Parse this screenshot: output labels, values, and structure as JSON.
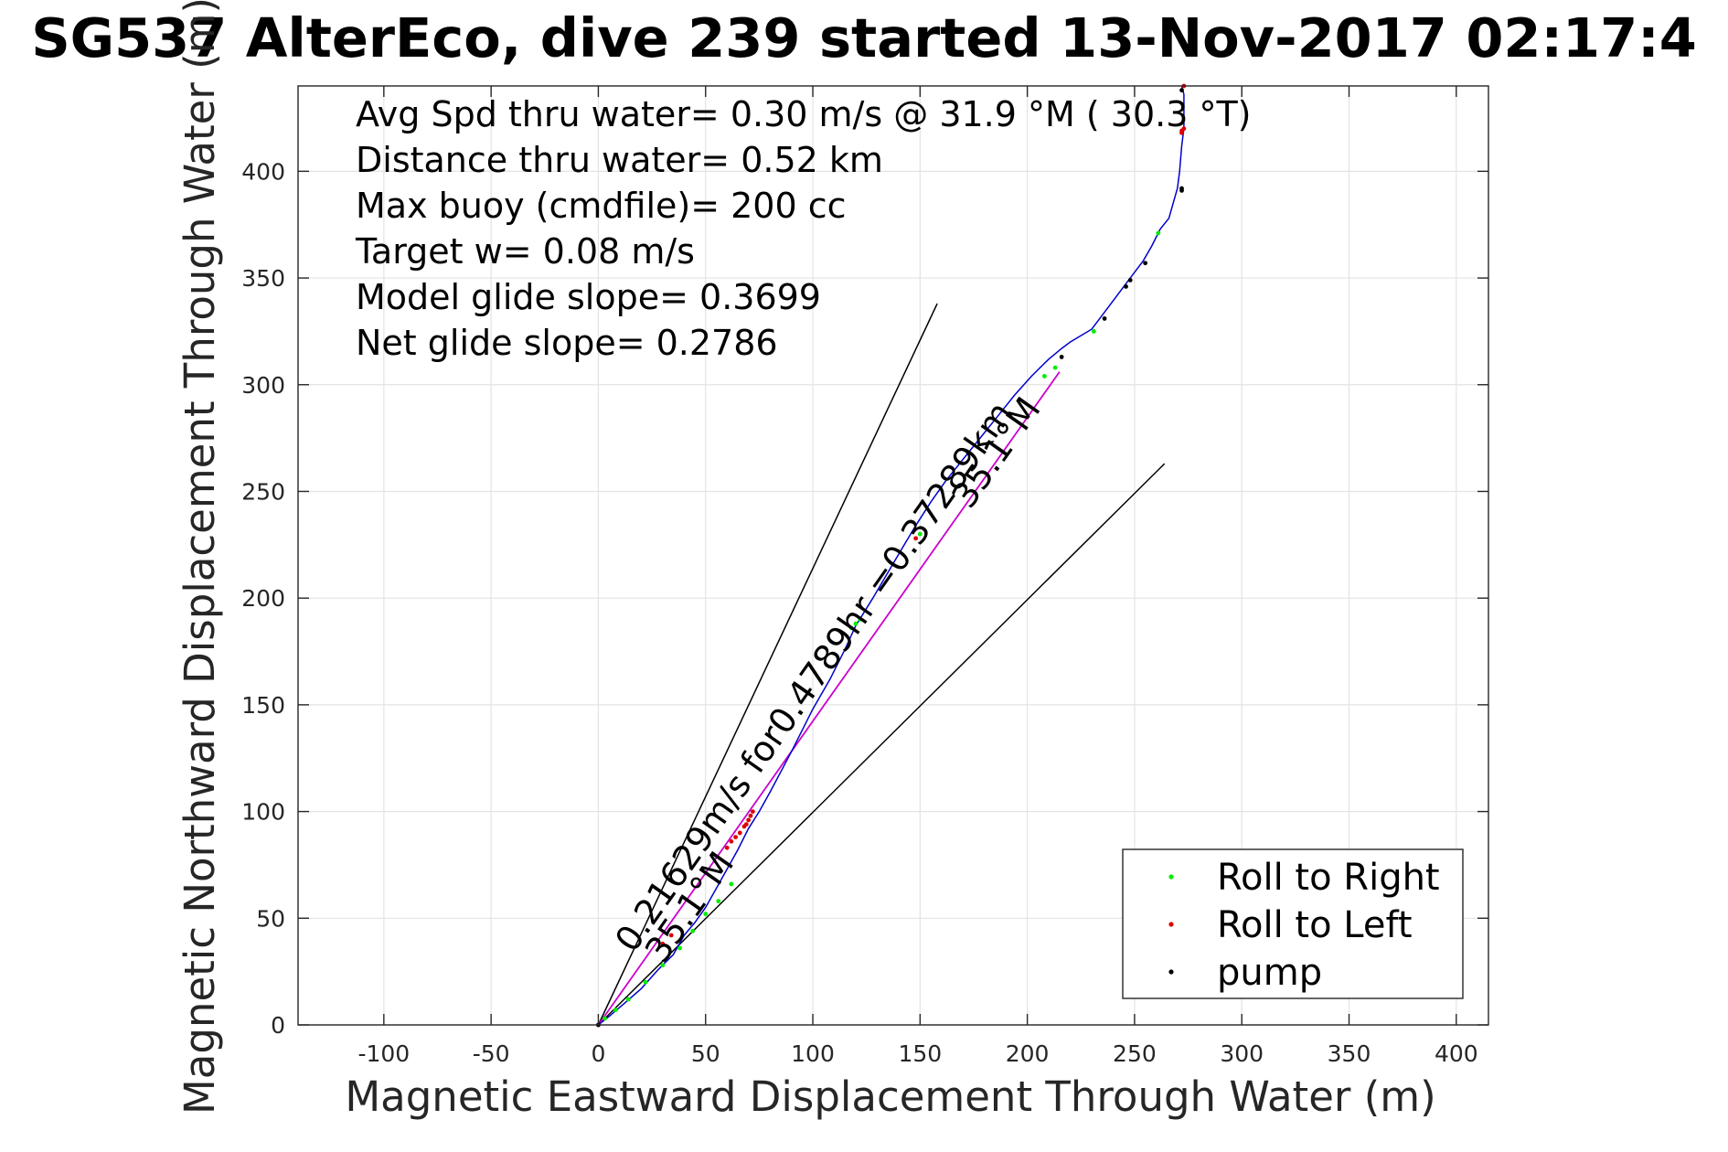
{
  "chart_data": {
    "type": "scatter",
    "title": "SG537 AlterEco, dive 239 started 13-Nov-2017 02:17:4",
    "xlabel": "Magnetic Eastward Displacement Through Water (m)",
    "ylabel": "Magnetic Northward Displacement Through Water (m)",
    "xlim": [
      -140,
      415
    ],
    "ylim": [
      0,
      440
    ],
    "xticks": [
      -100,
      -50,
      0,
      50,
      100,
      150,
      200,
      250,
      300,
      350,
      400
    ],
    "yticks": [
      0,
      50,
      100,
      150,
      200,
      250,
      300,
      350,
      400
    ],
    "grid": true,
    "info_lines": [
      "Avg Spd thru water=  0.30 m/s @  31.9 °M ( 30.3 °T)",
      "Distance thru water=  0.52 km",
      "Max buoy (cmdfile)= 200 cc",
      "Target w= 0.08 m/s",
      "Model glide slope= 0.3699",
      "Net glide slope= 0.2786"
    ],
    "rotated_annotations": [
      {
        "text": "0.21629m/s for0.4789hr =0.37289km",
        "x": 105,
        "y": 160,
        "angle_deg": -54.9
      },
      {
        "text": "35.1°M",
        "x": 190,
        "y": 265,
        "angle_deg": -54.9
      },
      {
        "text": "35.1°M",
        "x": 47,
        "y": 52,
        "angle_deg": -54.9
      }
    ],
    "reference_lines": [
      {
        "name": "envelope-left",
        "color": "#000000",
        "x": [
          0,
          158
        ],
        "y": [
          0,
          338
        ]
      },
      {
        "name": "envelope-right",
        "color": "#000000",
        "x": [
          0,
          264
        ],
        "y": [
          0,
          263
        ]
      }
    ],
    "track": {
      "color": "#0000cc",
      "x": [
        0,
        5,
        12,
        20,
        28,
        35,
        40,
        45,
        50,
        55,
        60,
        65,
        70,
        75,
        80,
        90,
        100,
        108,
        115,
        120,
        128,
        135,
        142,
        148,
        155,
        162,
        170,
        178,
        186,
        194,
        202,
        210,
        216,
        220,
        230,
        236,
        242,
        248,
        254,
        258,
        262,
        266,
        268,
        270,
        271,
        272,
        273,
        273,
        273,
        272
      ],
      "y": [
        0,
        4,
        10,
        17,
        26,
        33,
        42,
        48,
        55,
        64,
        73,
        82,
        92,
        100,
        109,
        128,
        148,
        162,
        176,
        187,
        200,
        212,
        224,
        234,
        245,
        255,
        265,
        275,
        285,
        295,
        304,
        312,
        317,
        320,
        326,
        334,
        342,
        350,
        358,
        365,
        373,
        378,
        385,
        392,
        400,
        412,
        420,
        428,
        436,
        440
      ]
    },
    "net_line": {
      "color": "#cc00cc",
      "x": [
        0,
        215
      ],
      "y": [
        0,
        306
      ]
    },
    "series": [
      {
        "name": "Roll to Right",
        "color": "#00ee00",
        "x": [
          3,
          8,
          14,
          22,
          30,
          38,
          44,
          50,
          56,
          62,
          118,
          120,
          122,
          150,
          208,
          213,
          231,
          261
        ],
        "y": [
          3,
          7,
          12,
          20,
          28,
          36,
          44,
          52,
          58,
          66,
          186,
          188,
          190,
          230,
          304,
          308,
          325,
          371
        ]
      },
      {
        "name": "Roll to Left",
        "color": "#dd0000",
        "x": [
          0,
          30,
          34,
          60,
          62,
          64,
          66,
          68,
          69,
          70,
          71,
          72,
          148,
          272,
          272,
          273,
          273
        ],
        "y": [
          0,
          38,
          42,
          83,
          86,
          88,
          90,
          93,
          94,
          96,
          98,
          100,
          228,
          418,
          419,
          420,
          440
        ]
      },
      {
        "name": "pump",
        "color": "#000000",
        "x": [
          0,
          236,
          246,
          248,
          255,
          216,
          272,
          272,
          272
        ],
        "y": [
          0,
          331,
          346,
          349,
          357,
          313,
          391,
          392,
          438
        ]
      }
    ],
    "legend_position": "bottom-right"
  }
}
